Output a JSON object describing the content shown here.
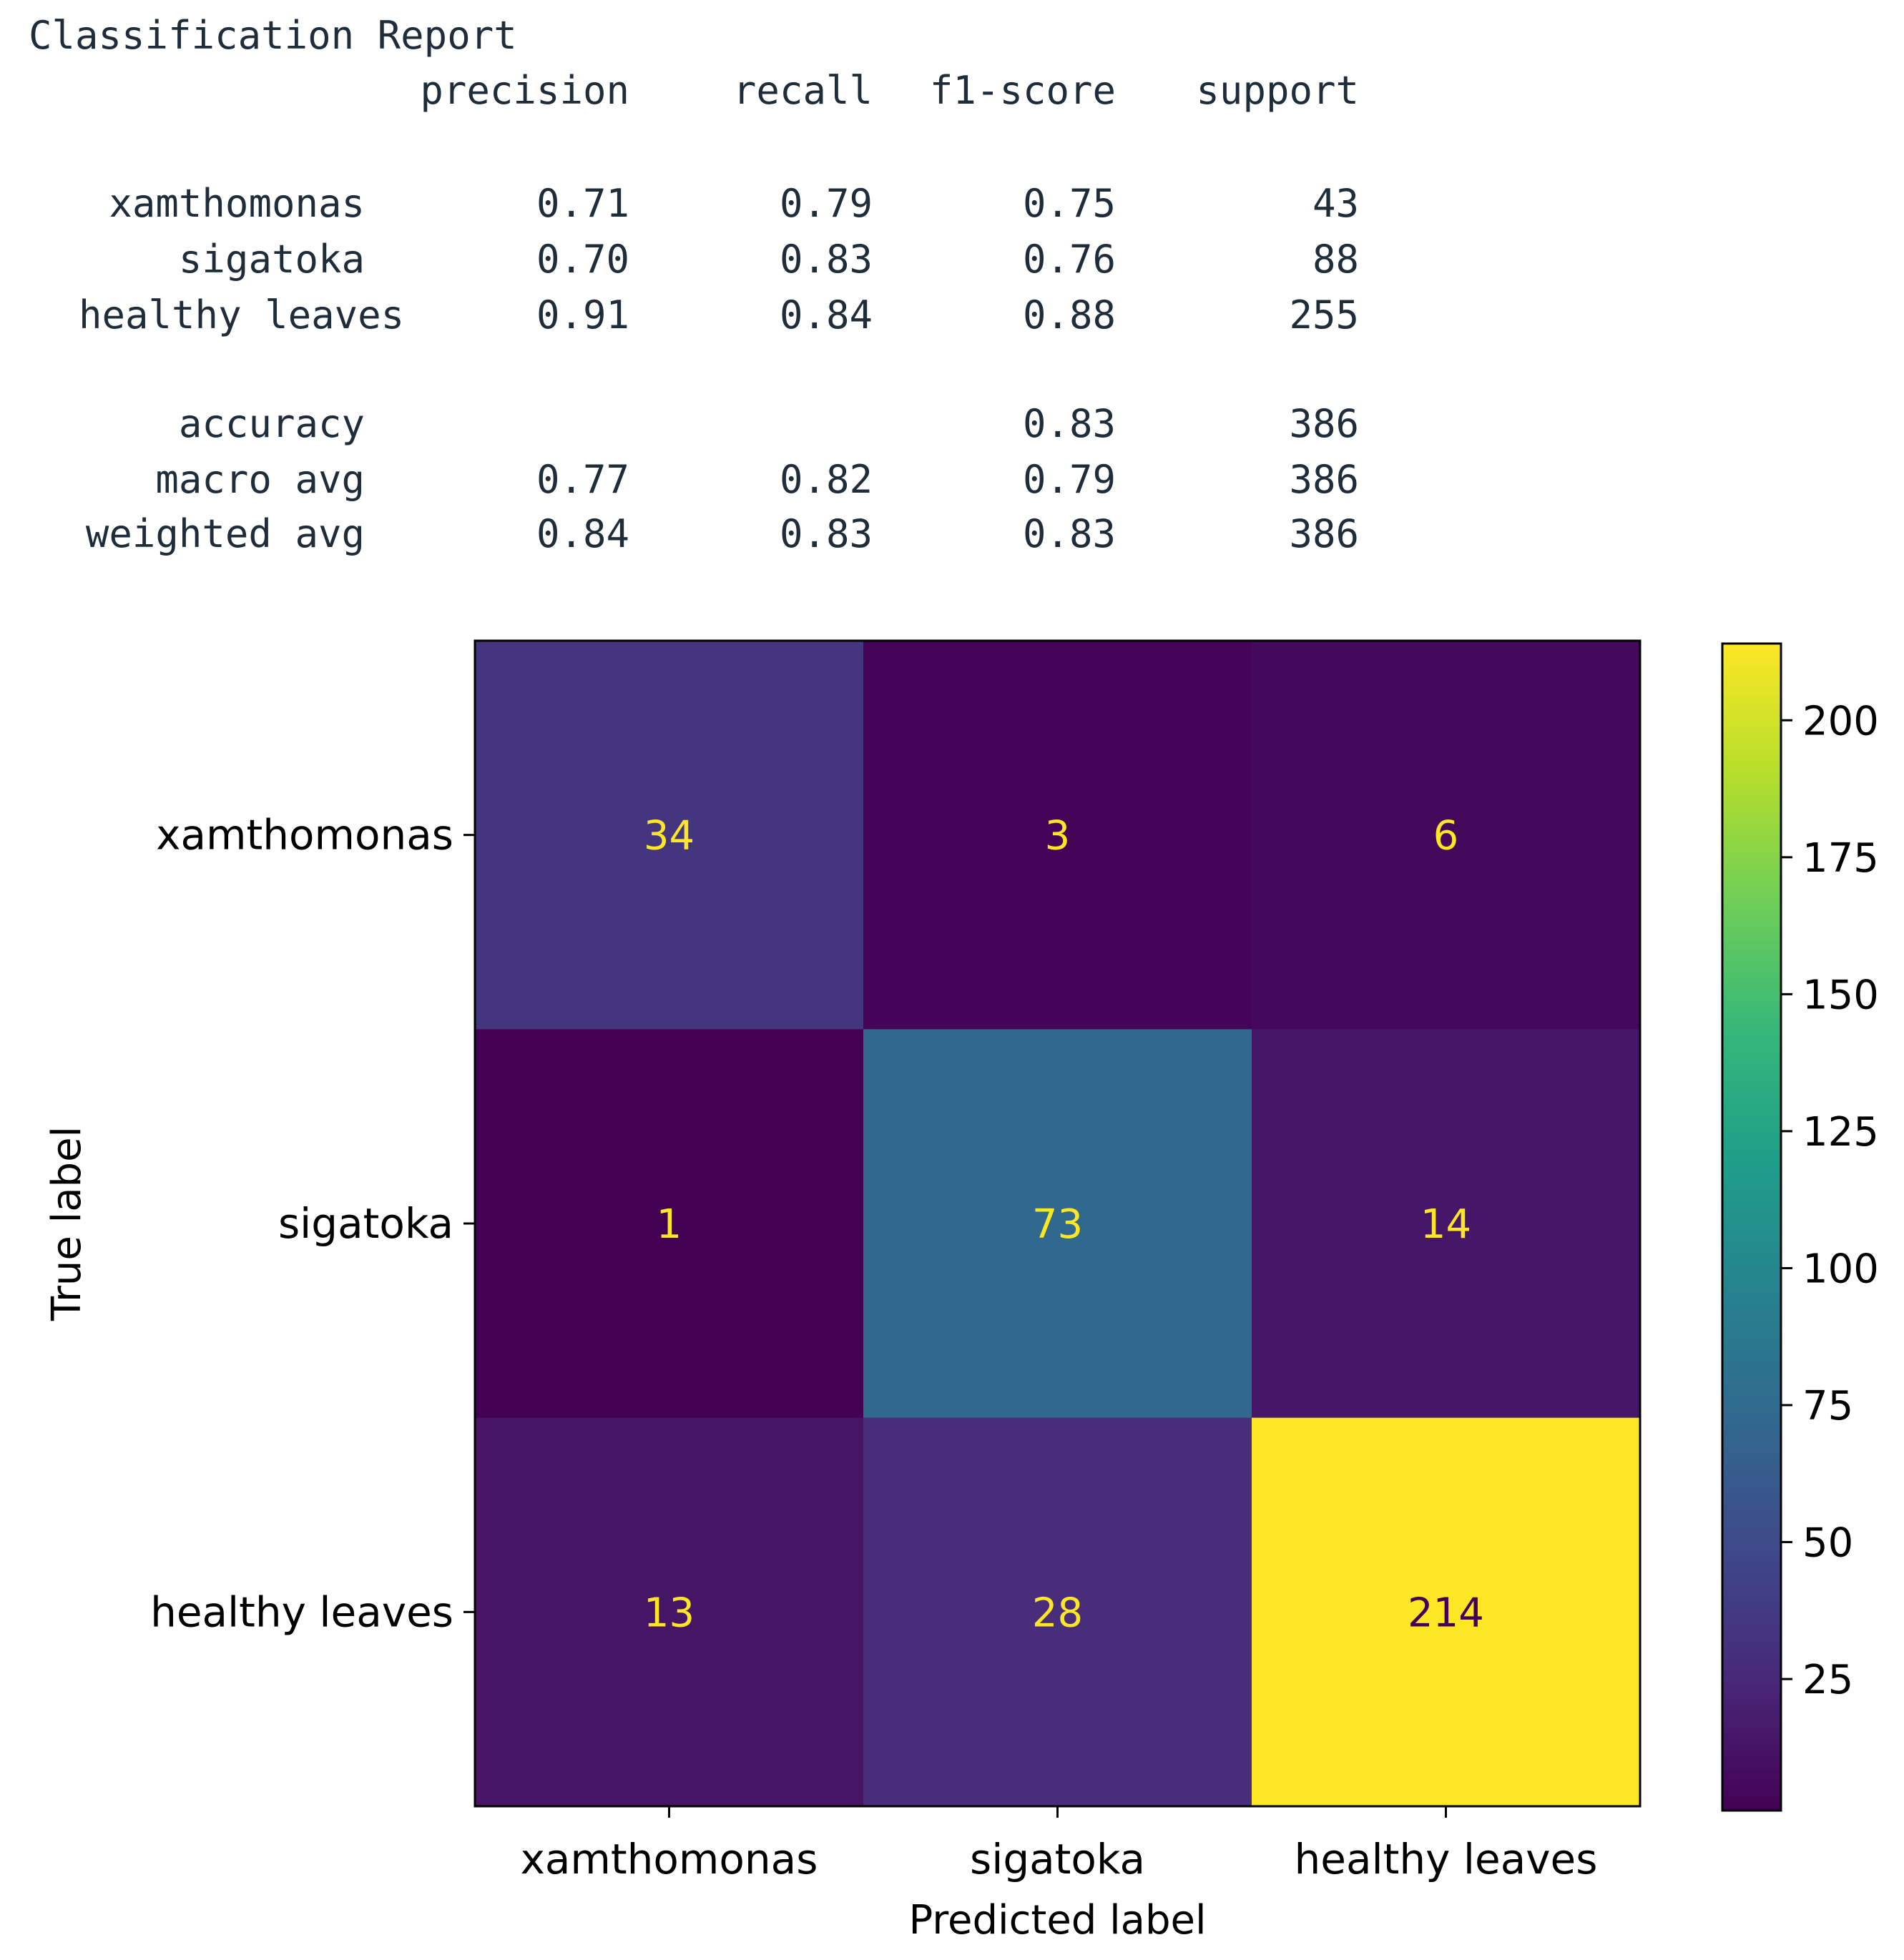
{
  "report": {
    "title": "Classification Report",
    "headers": [
      "precision",
      "recall",
      "f1-score",
      "support"
    ],
    "rows": [
      {
        "label": "xamthomonas",
        "precision": "0.71",
        "recall": "0.79",
        "f1": "0.75",
        "support": "43"
      },
      {
        "label": "sigatoka",
        "precision": "0.70",
        "recall": "0.83",
        "f1": "0.76",
        "support": "88"
      },
      {
        "label": "healthy leaves",
        "precision": "0.91",
        "recall": "0.84",
        "f1": "0.88",
        "support": "255"
      }
    ],
    "summary": [
      {
        "label": "accuracy",
        "precision": "",
        "recall": "",
        "f1": "0.83",
        "support": "386"
      },
      {
        "label": "macro avg",
        "precision": "0.77",
        "recall": "0.82",
        "f1": "0.79",
        "support": "386"
      },
      {
        "label": "weighted avg",
        "precision": "0.84",
        "recall": "0.83",
        "f1": "0.83",
        "support": "386"
      }
    ]
  },
  "chart_data": {
    "type": "heatmap",
    "title": "",
    "xlabel": "Predicted label",
    "ylabel": "True label",
    "x_categories": [
      "xamthomonas",
      "sigatoka",
      "healthy leaves"
    ],
    "y_categories": [
      "xamthomonas",
      "sigatoka",
      "healthy leaves"
    ],
    "values": [
      [
        34,
        3,
        6
      ],
      [
        1,
        73,
        14
      ],
      [
        13,
        28,
        214
      ]
    ],
    "colormap": "viridis",
    "colorbar": {
      "range": [
        1,
        214
      ],
      "ticks": [
        25,
        50,
        75,
        100,
        125,
        150,
        175,
        200
      ]
    },
    "text_colors": {
      "on_dark": "#fde725",
      "on_light": "#440154"
    }
  }
}
